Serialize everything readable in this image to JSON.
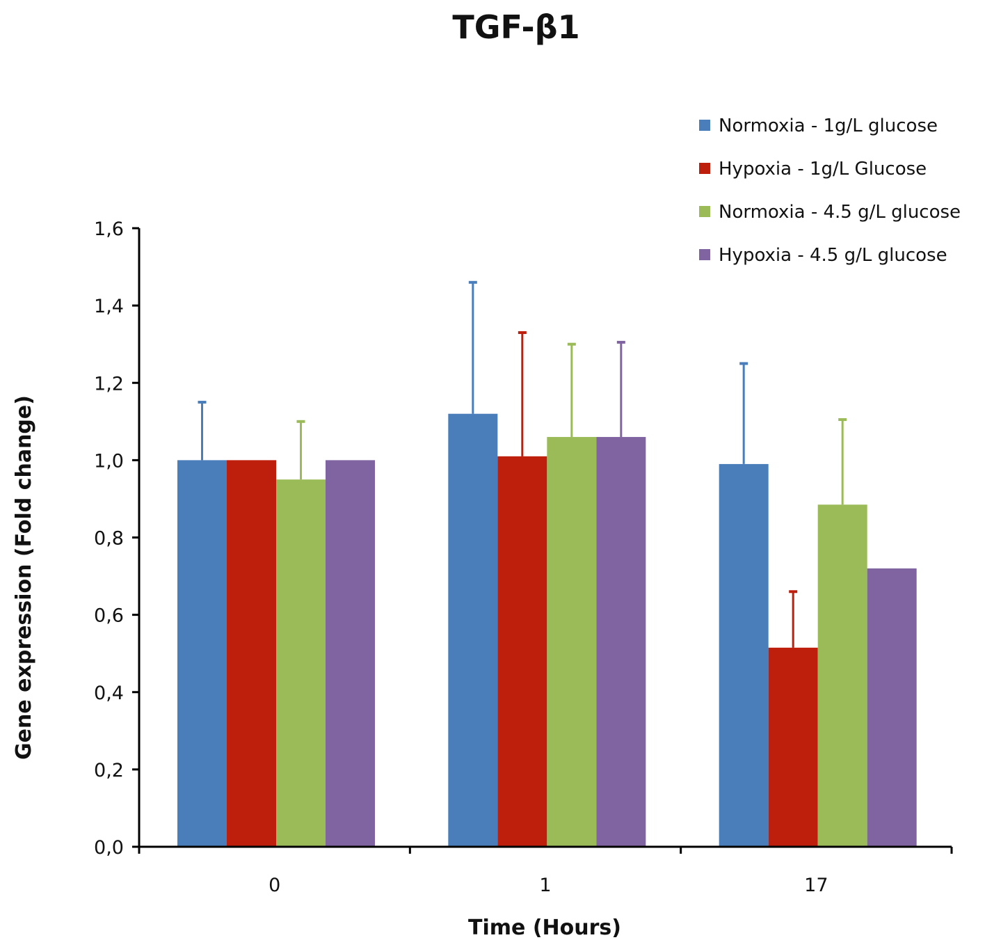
{
  "chart_data": {
    "type": "bar",
    "title": "TGF-β1",
    "xlabel": "Time (Hours)",
    "ylabel": "Gene expression  (Fold change)",
    "categories": [
      "0",
      "1",
      "17"
    ],
    "ylim": [
      0,
      1.6
    ],
    "yticks": [
      {
        "value": 0.0,
        "label": "0,0"
      },
      {
        "value": 0.2,
        "label": "0,2"
      },
      {
        "value": 0.4,
        "label": "0,4"
      },
      {
        "value": 0.6,
        "label": "0,6"
      },
      {
        "value": 0.8,
        "label": "0,8"
      },
      {
        "value": 1.0,
        "label": "1,0"
      },
      {
        "value": 1.2,
        "label": "1,2"
      },
      {
        "value": 1.4,
        "label": "1,4"
      },
      {
        "value": 1.6,
        "label": "1,6"
      }
    ],
    "grid": false,
    "legend_position": "top-right",
    "series": [
      {
        "name": "Normoxia - 1g/L glucose",
        "color": "#4a7ebb",
        "values": [
          1.0,
          1.12,
          0.99
        ],
        "errors": [
          0.15,
          0.34,
          0.26
        ]
      },
      {
        "name": "Hypoxia - 1g/L Glucose",
        "color": "#be1e0c",
        "values": [
          1.0,
          1.01,
          0.515
        ],
        "errors": [
          0.0,
          0.32,
          0.145
        ]
      },
      {
        "name": "Normoxia - 4.5 g/L glucose",
        "color": "#9bbb59",
        "values": [
          0.95,
          1.06,
          0.885
        ],
        "errors": [
          0.15,
          0.24,
          0.22
        ]
      },
      {
        "name": "Hypoxia - 4.5 g/L glucose",
        "color": "#8064a2",
        "values": [
          1.0,
          1.06,
          0.72
        ],
        "errors": [
          0.0,
          0.245,
          0.0
        ]
      }
    ],
    "axis_color": "#000000"
  }
}
